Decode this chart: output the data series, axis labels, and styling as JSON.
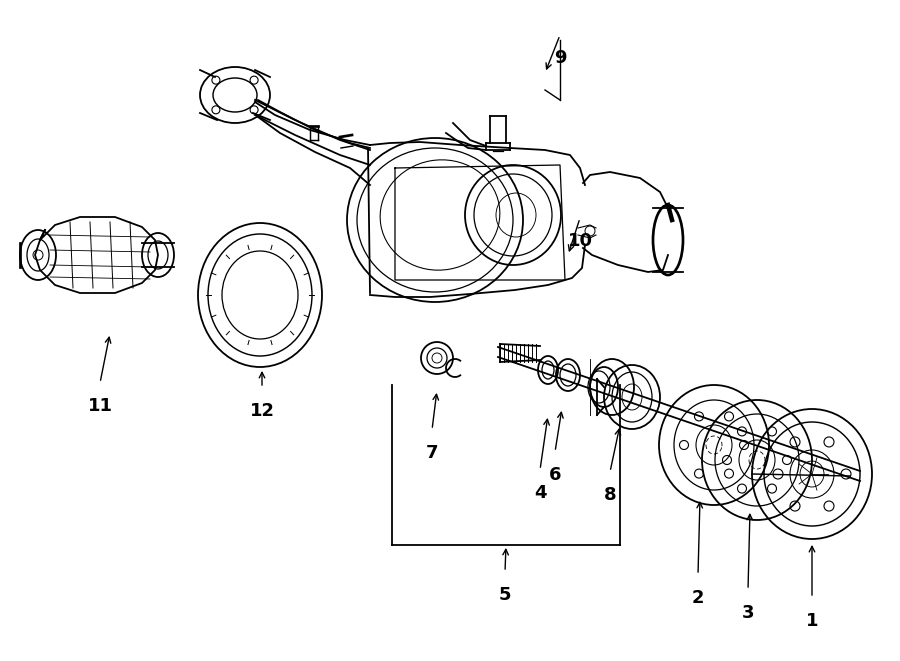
{
  "bg_color": "#ffffff",
  "line_color": "#000000",
  "fig_width": 9.0,
  "fig_height": 6.61,
  "dpi": 100,
  "label_fs": 13
}
